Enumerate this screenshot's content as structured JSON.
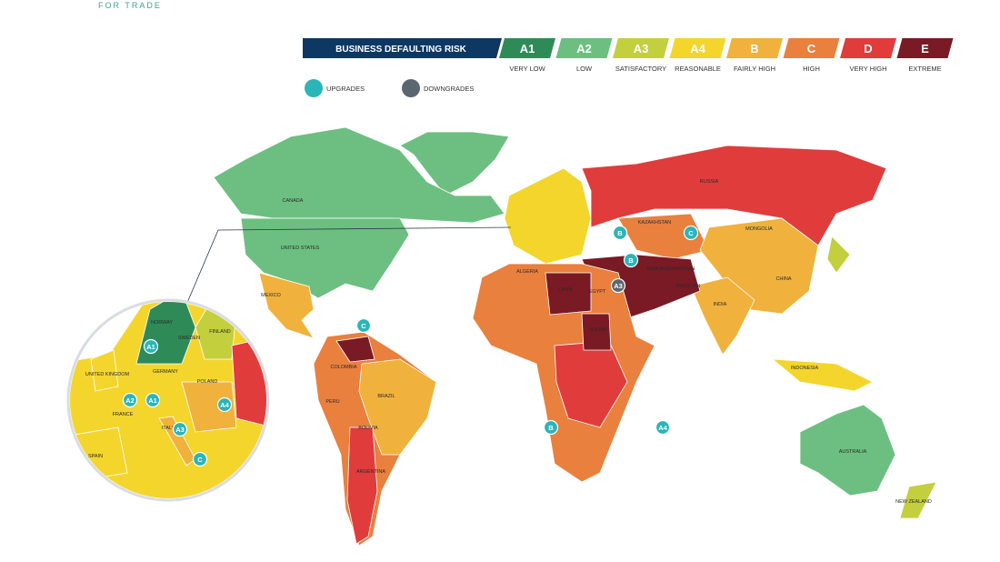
{
  "header": {
    "brand": "FOR TRADE"
  },
  "legend": {
    "title": "BUSINESS DEFAULTING RISK",
    "grades": [
      {
        "code": "A1",
        "label": "VERY LOW",
        "color": "#2e8b57"
      },
      {
        "code": "A2",
        "label": "LOW",
        "color": "#6cbf80"
      },
      {
        "code": "A3",
        "label": "SATISFACTORY",
        "color": "#c3cf3c"
      },
      {
        "code": "A4",
        "label": "REASONABLE",
        "color": "#f4d52c"
      },
      {
        "code": "B",
        "label": "FAIRLY HIGH",
        "color": "#f0b23c"
      },
      {
        "code": "C",
        "label": "HIGH",
        "color": "#e9803e"
      },
      {
        "code": "D",
        "label": "VERY HIGH",
        "color": "#e03c3c"
      },
      {
        "code": "E",
        "label": "EXTREME",
        "color": "#7a1a24"
      }
    ]
  },
  "indicators": [
    {
      "label": "UPGRADES",
      "color": "#2bb5b8"
    },
    {
      "label": "DOWNGRADES",
      "color": "#5b6770"
    }
  ],
  "countries": [
    {
      "name": "CANADA"
    },
    {
      "name": "UNITED STATES"
    },
    {
      "name": "MEXICO"
    },
    {
      "name": "BRAZIL"
    },
    {
      "name": "COLOMBIA"
    },
    {
      "name": "PERU"
    },
    {
      "name": "BOLIVIA"
    },
    {
      "name": "ARGENTINA"
    },
    {
      "name": "RUSSIA"
    },
    {
      "name": "KAZAKHSTAN"
    },
    {
      "name": "MONGOLIA"
    },
    {
      "name": "CHINA"
    },
    {
      "name": "INDIA"
    },
    {
      "name": "IRAN"
    },
    {
      "name": "AFGHANISTAN"
    },
    {
      "name": "PAKISTAN"
    },
    {
      "name": "LIBYA"
    },
    {
      "name": "EGYPT"
    },
    {
      "name": "ALGERIA"
    },
    {
      "name": "SUDAN"
    },
    {
      "name": "INDONESIA"
    },
    {
      "name": "AUSTRALIA"
    },
    {
      "name": "NEW ZEALAND"
    },
    {
      "name": "NORWAY"
    },
    {
      "name": "SWEDEN"
    },
    {
      "name": "FINLAND"
    },
    {
      "name": "GERMANY"
    },
    {
      "name": "FRANCE"
    },
    {
      "name": "SPAIN"
    },
    {
      "name": "UNITED KINGDOM"
    },
    {
      "name": "POLAND"
    },
    {
      "name": "ITALY"
    }
  ],
  "badges": [
    {
      "grade": "B",
      "kind": 0
    },
    {
      "grade": "C",
      "kind": 0
    },
    {
      "grade": "B",
      "kind": 0
    },
    {
      "grade": "A3",
      "kind": 1
    },
    {
      "grade": "C",
      "kind": 0
    },
    {
      "grade": "B",
      "kind": 0
    },
    {
      "grade": "A4",
      "kind": 0
    },
    {
      "grade": "A1",
      "kind": 0
    },
    {
      "grade": "A2",
      "kind": 0
    },
    {
      "grade": "A1",
      "kind": 0
    },
    {
      "grade": "A4",
      "kind": 0
    },
    {
      "grade": "A3",
      "kind": 0
    },
    {
      "grade": "C",
      "kind": 0
    }
  ]
}
